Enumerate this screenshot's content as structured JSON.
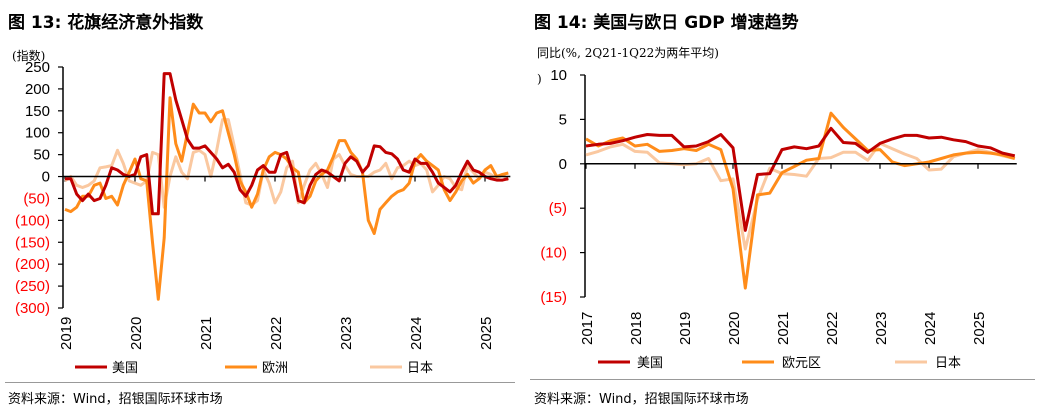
{
  "left": {
    "title": "图 13: 花旗经济意外指数",
    "source": "资料来源：Wind，招银国际环球市场"
  },
  "right": {
    "title": "图 14: 美国与欧日 GDP 增速趋势",
    "source": "资料来源：Wind，招银国际环球市场"
  },
  "colors": {
    "us": "#C00000",
    "eu": "#FF8C1A",
    "jp": "#FAC8A0",
    "negative_label": "#FF0000"
  },
  "chart_data": [
    {
      "type": "line",
      "title": "图 13: 花旗经济意外指数",
      "ylabel": "(指数)",
      "ylim": [
        -300,
        250
      ],
      "yticks": [
        "250",
        "200",
        "150",
        "100",
        "50",
        "0",
        "(50)",
        "(100)",
        "(150)",
        "(200)",
        "(250)",
        "(300)"
      ],
      "ytick_values": [
        250,
        200,
        150,
        100,
        50,
        0,
        -50,
        -100,
        -150,
        -200,
        -250,
        -300
      ],
      "xticks": [
        "2019",
        "2020",
        "2021",
        "2022",
        "2023",
        "2024",
        "2025"
      ],
      "x_start": "2019-01",
      "frequency": "monthly",
      "legend_position": "bottom",
      "series": [
        {
          "name": "美国",
          "color": "#C00000",
          "values": [
            -5,
            -5,
            -40,
            -55,
            -40,
            -55,
            -50,
            -20,
            20,
            15,
            5,
            0,
            5,
            45,
            50,
            -85,
            -85,
            235,
            235,
            175,
            130,
            85,
            65,
            65,
            70,
            55,
            40,
            20,
            28,
            10,
            -30,
            -45,
            -20,
            15,
            25,
            10,
            10,
            50,
            55,
            10,
            -55,
            -60,
            -20,
            5,
            15,
            10,
            0,
            -10,
            30,
            45,
            35,
            10,
            25,
            70,
            68,
            55,
            52,
            40,
            15,
            10,
            40,
            30,
            30,
            10,
            -15,
            -25,
            -35,
            -20,
            10,
            35,
            15,
            10,
            0,
            -5,
            -8,
            -8,
            -5
          ]
        },
        {
          "name": "欧洲",
          "color": "#FF8C1A",
          "values": [
            -75,
            -80,
            -70,
            -45,
            -45,
            -20,
            -15,
            -50,
            -45,
            -65,
            -20,
            10,
            40,
            -5,
            -10,
            -150,
            -280,
            -140,
            180,
            75,
            35,
            100,
            165,
            145,
            145,
            125,
            145,
            150,
            100,
            50,
            -10,
            -35,
            -70,
            -40,
            15,
            45,
            55,
            50,
            40,
            20,
            10,
            -60,
            -45,
            -10,
            5,
            15,
            45,
            82,
            82,
            55,
            40,
            10,
            -100,
            -130,
            -75,
            -60,
            -45,
            -35,
            -30,
            -15,
            35,
            50,
            35,
            25,
            15,
            -30,
            -55,
            -35,
            -10,
            5,
            -15,
            -5,
            15,
            25,
            0,
            5,
            8
          ]
        },
        {
          "name": "日本",
          "color": "#FAC8A0",
          "values": [
            -10,
            0,
            -20,
            -25,
            -20,
            -10,
            20,
            22,
            25,
            60,
            30,
            -10,
            -15,
            -20,
            -10,
            55,
            50,
            -70,
            0,
            45,
            10,
            -5,
            55,
            60,
            50,
            0,
            60,
            130,
            130,
            70,
            5,
            -60,
            -65,
            -55,
            15,
            -15,
            -60,
            -35,
            20,
            35,
            -60,
            -20,
            15,
            30,
            5,
            -25,
            40,
            50,
            25,
            5,
            0,
            0,
            0,
            10,
            15,
            30,
            -5,
            20,
            25,
            35,
            25,
            30,
            15,
            -35,
            -20,
            0,
            -5,
            -25,
            -30,
            25,
            10,
            -5,
            10,
            5,
            -5,
            5,
            -8
          ]
        }
      ]
    },
    {
      "type": "line",
      "title": "图 14: 美国与欧日 GDP 增速趋势",
      "ylabel": "同比(%, 2Q21-1Q22为两年平均)",
      "ylim": [
        -15,
        10
      ],
      "yticks": [
        "10",
        "5",
        "0",
        "(5)",
        "(10)",
        "(15)"
      ],
      "ytick_values": [
        10,
        5,
        0,
        -5,
        -10,
        -15
      ],
      "xticks": [
        "2017",
        "2018",
        "2019",
        "2020",
        "2021",
        "2022",
        "2023",
        "2024",
        "2025"
      ],
      "x_start": "2017Q1",
      "frequency": "quarterly",
      "legend_position": "bottom",
      "series": [
        {
          "name": "美国",
          "color": "#C00000",
          "values": [
            2.0,
            2.2,
            2.3,
            2.6,
            3.0,
            3.3,
            3.2,
            3.2,
            1.9,
            2.0,
            2.5,
            3.3,
            1.8,
            -7.5,
            -1.2,
            -1.1,
            1.6,
            1.9,
            1.7,
            2.0,
            4.0,
            2.4,
            2.3,
            1.3,
            2.3,
            2.8,
            3.2,
            3.2,
            2.9,
            3.0,
            2.7,
            2.5,
            2.0,
            1.8,
            1.2,
            0.9
          ]
        },
        {
          "name": "欧元区",
          "color": "#FF8C1A",
          "values": [
            2.8,
            2.0,
            2.6,
            2.9,
            2.0,
            2.2,
            1.4,
            1.5,
            1.7,
            1.5,
            2.2,
            1.6,
            -2.8,
            -14.0,
            -3.5,
            -3.3,
            -1.0,
            -0.3,
            0.4,
            0.6,
            5.7,
            4.1,
            2.8,
            1.5,
            1.6,
            0.2,
            -0.2,
            0.0,
            0.2,
            0.6,
            1.0,
            1.2,
            1.3,
            1.2,
            1.0,
            0.6
          ]
        },
        {
          "name": "日本",
          "color": "#FAC8A0",
          "values": [
            1.0,
            1.4,
            1.9,
            2.2,
            1.4,
            1.3,
            0.1,
            0.0,
            -0.1,
            0.0,
            0.6,
            -1.9,
            -1.7,
            -9.6,
            -4.0,
            -0.5,
            -1.1,
            -1.2,
            -1.4,
            0.6,
            0.7,
            1.3,
            1.3,
            0.4,
            2.3,
            1.7,
            1.1,
            0.6,
            -0.7,
            -0.6,
            0.8,
            1.2,
            1.6,
            1.3,
            0.9,
            0.6
          ]
        }
      ]
    }
  ]
}
